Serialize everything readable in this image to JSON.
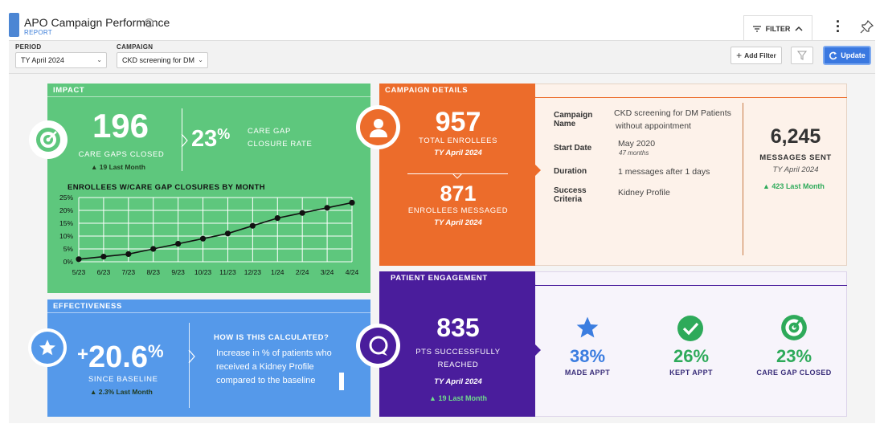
{
  "header": {
    "title": "APO Campaign Performance",
    "info_icon": "ⓘ",
    "subtitle": "REPORT",
    "filter_label": "FILTER",
    "more_icon": "kebab-menu-icon",
    "pin_icon": "pin-icon"
  },
  "filters": {
    "period_label": "PERIOD",
    "period_value": "TY April 2024",
    "campaign_label": "CAMPAIGN",
    "campaign_value": "CKD screening for DM",
    "add_filter": "Add Filter",
    "update": "Update"
  },
  "impact": {
    "header": "IMPACT",
    "care_gaps_value": "196",
    "care_gaps_label": "CARE GAPS CLOSED",
    "care_gaps_trend": "19 Last Month",
    "rate_value": "23",
    "rate_unit": "%",
    "rate_label_1": "CARE GAP",
    "rate_label_2": "CLOSURE RATE",
    "chart_title": "ENROLLEES W/CARE GAP CLOSURES BY MONTH"
  },
  "chart_data": {
    "type": "line",
    "title": "ENROLLEES W/CARE GAP CLOSURES BY MONTH",
    "categories": [
      "5/23",
      "6/23",
      "7/23",
      "8/23",
      "9/23",
      "10/23",
      "11/23",
      "12/23",
      "1/24",
      "2/24",
      "3/24",
      "4/24"
    ],
    "values": [
      1,
      2,
      3,
      5,
      7,
      9,
      11,
      14,
      17,
      19,
      21,
      23
    ],
    "y_ticks": [
      "0%",
      "5%",
      "10%",
      "15%",
      "20%",
      "25%"
    ],
    "ylim": [
      0,
      25
    ],
    "grid": true,
    "line_color": "#111111",
    "grid_color": "#ffffff"
  },
  "effectiveness": {
    "header": "EFFECTIVENESS",
    "value": "20.6",
    "plus": "+",
    "unit": "%",
    "label": "SINCE BASELINE",
    "trend": "2.3% Last Month",
    "how_title": "HOW IS THIS CALCULATED?",
    "how_line1": "Increase in % of patients who",
    "how_line2": "received a  Kidney Profile",
    "how_line3": "compared to the baseline"
  },
  "campaign": {
    "header": "CAMPAIGN DETAILS",
    "total_value": "957",
    "total_label": "TOTAL ENROLLEES",
    "total_period": "TY April 2024",
    "messaged_value": "871",
    "messaged_label": "ENROLLEES MESSAGED",
    "messaged_period": "TY April 2024",
    "name_label_1": "Campaign",
    "name_label_2": "Name",
    "name_value_1": "CKD screening for DM Patients",
    "name_value_2": "without appointment",
    "start_label": "Start Date",
    "start_value": "May 2020",
    "start_sub": "47 months",
    "duration_label": "Duration",
    "duration_value": "1 messages after 1 days",
    "success_label_1": "Success",
    "success_label_2": "Criteria",
    "success_value": "Kidney Profile",
    "sent_value": "6,245",
    "sent_label": "MESSAGES SENT",
    "sent_period": "TY April 2024",
    "sent_trend": "423 Last Month"
  },
  "engagement": {
    "header": "PATIENT ENGAGEMENT",
    "reached_value": "835",
    "reached_label_1": "PTS SUCCESSFULLY",
    "reached_label_2": "REACHED",
    "reached_period": "TY April 2024",
    "reached_trend": "19 Last Month",
    "made_value": "38%",
    "made_label": "MADE APPT",
    "kept_value": "26%",
    "kept_label": "KEPT APPT",
    "closed_value": "23%",
    "closed_label": "CARE GAP CLOSED",
    "colors": {
      "made": "#3b7de0",
      "kept": "#2eaa5a",
      "closed": "#2eaa5a"
    }
  }
}
